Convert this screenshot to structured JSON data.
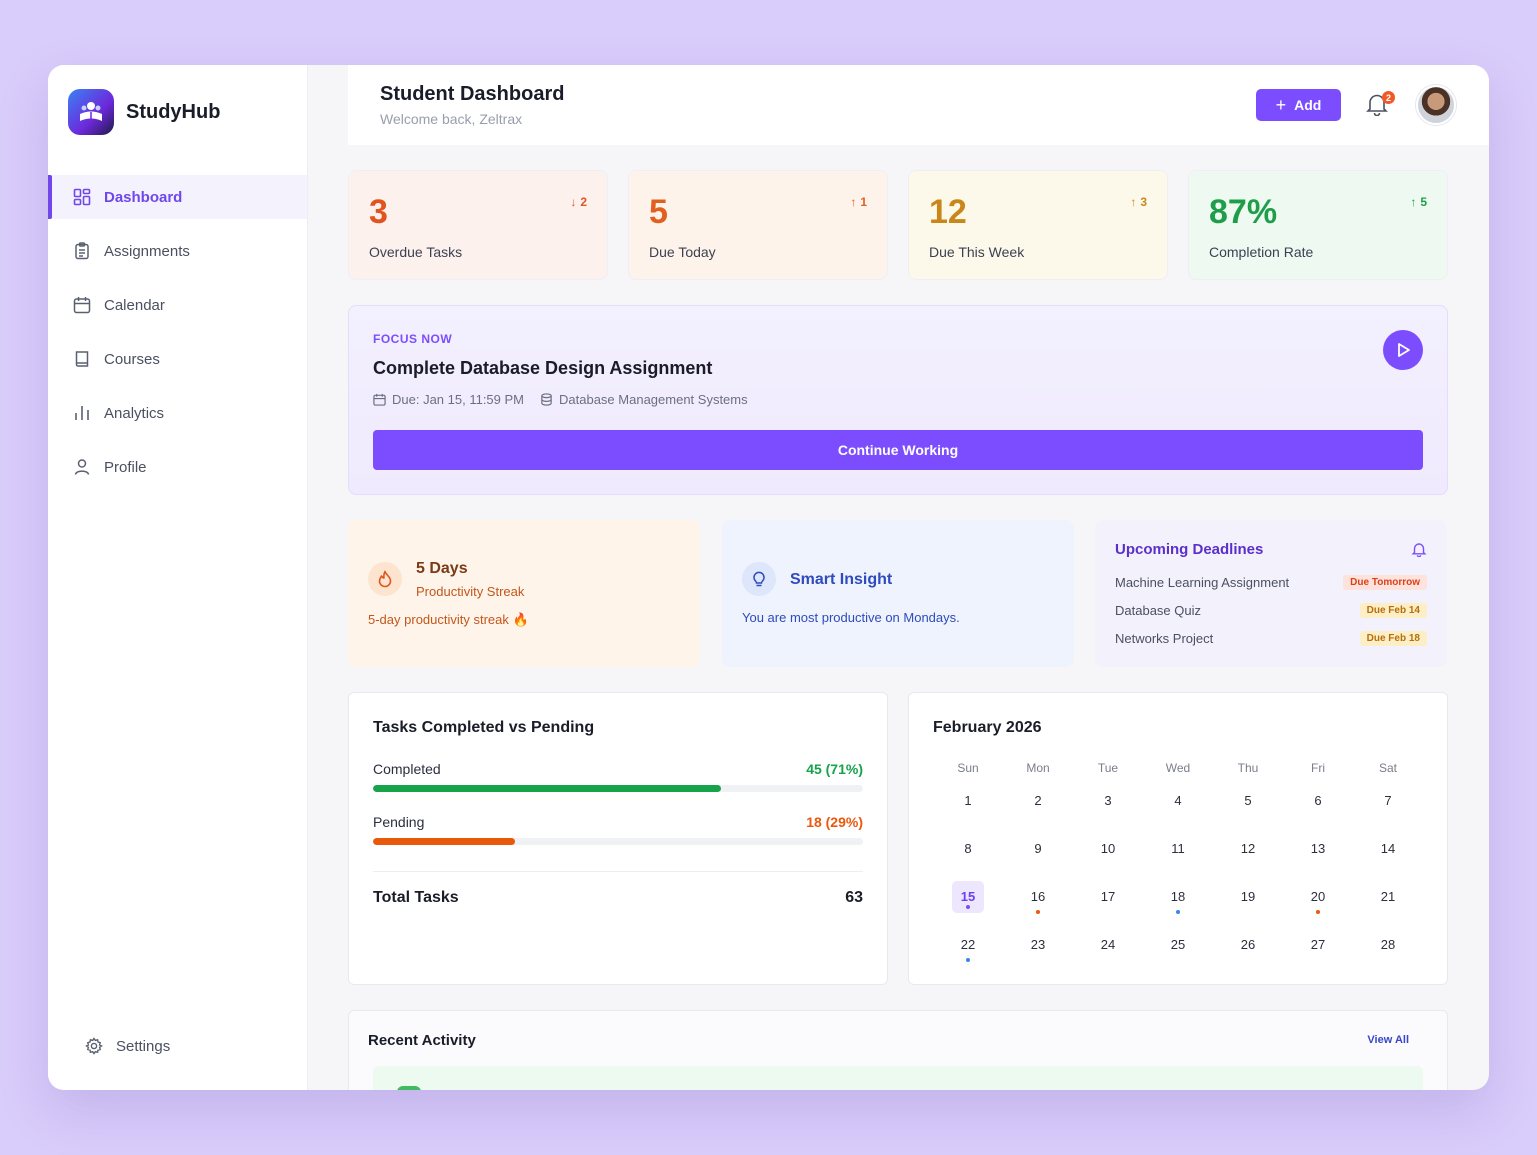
{
  "app": {
    "name": "StudyHub"
  },
  "sidebar": {
    "items": [
      {
        "label": "Dashboard",
        "icon": "grid-icon",
        "active": true
      },
      {
        "label": "Assignments",
        "icon": "clipboard-icon"
      },
      {
        "label": "Calendar",
        "icon": "calendar-icon"
      },
      {
        "label": "Courses",
        "icon": "book-icon"
      },
      {
        "label": "Analytics",
        "icon": "bar-chart-icon"
      },
      {
        "label": "Profile",
        "icon": "user-icon"
      }
    ],
    "settings_label": "Settings"
  },
  "header": {
    "title": "Student Dashboard",
    "subtitle": "Welcome back, Zeltrax",
    "add_label": "Add",
    "notification_count": "2"
  },
  "stats": [
    {
      "value": "3",
      "label": "Overdue Tasks",
      "trend": "2",
      "direction": "down",
      "color": "#e0551f",
      "bg": "#fdf1ee"
    },
    {
      "value": "5",
      "label": "Due Today",
      "trend": "1",
      "direction": "up",
      "color": "#e0601f",
      "bg": "#fdf3ea"
    },
    {
      "value": "12",
      "label": "Due This Week",
      "trend": "3",
      "direction": "up",
      "color": "#c98619",
      "bg": "#fdf9ea"
    },
    {
      "value": "87%",
      "label": "Completion Rate",
      "trend": "5",
      "direction": "up",
      "color": "#1f9e4a",
      "bg": "#eefaf1"
    }
  ],
  "focus": {
    "eyebrow": "FOCUS NOW",
    "title": "Complete Database Design Assignment",
    "due": "Due: Jan 15, 11:59 PM",
    "course": "Database Management Systems",
    "button_label": "Continue Working"
  },
  "streak": {
    "title": "5 Days",
    "subtitle": "Productivity Streak",
    "note": "5-day productivity streak 🔥"
  },
  "insight": {
    "title": "Smart Insight",
    "text": "You are most productive on Mondays."
  },
  "deadlines": {
    "title": "Upcoming Deadlines",
    "items": [
      {
        "name": "Machine Learning Assignment",
        "tag": "Due Tomorrow",
        "tag_color": "#d9421a",
        "tag_bg": "#fde3dc"
      },
      {
        "name": "Database Quiz",
        "tag": "Due Feb 14",
        "tag_color": "#b86e0a",
        "tag_bg": "#fcefc7"
      },
      {
        "name": "Networks Project",
        "tag": "Due Feb 18",
        "tag_color": "#b86e0a",
        "tag_bg": "#fcefc7"
      }
    ]
  },
  "tasks": {
    "title": "Tasks Completed vs Pending",
    "rows": [
      {
        "label": "Completed",
        "value": "45 (71%)",
        "fraction": 0.71,
        "color": "#16a34a"
      },
      {
        "label": "Pending",
        "value": "18 (29%)",
        "fraction": 0.29,
        "color": "#ea580c"
      }
    ],
    "total_label": "Total Tasks",
    "total_value": "63"
  },
  "calendar": {
    "title": "February 2026",
    "weekdays": [
      "Sun",
      "Mon",
      "Tue",
      "Wed",
      "Thu",
      "Fri",
      "Sat"
    ],
    "days": [
      {
        "n": "1"
      },
      {
        "n": "2"
      },
      {
        "n": "3"
      },
      {
        "n": "4"
      },
      {
        "n": "5"
      },
      {
        "n": "6"
      },
      {
        "n": "7"
      },
      {
        "n": "8"
      },
      {
        "n": "9"
      },
      {
        "n": "10"
      },
      {
        "n": "11"
      },
      {
        "n": "12"
      },
      {
        "n": "13"
      },
      {
        "n": "14"
      },
      {
        "n": "15",
        "today": true,
        "dot": "#7c4dff"
      },
      {
        "n": "16",
        "dot": "#ea580c"
      },
      {
        "n": "17"
      },
      {
        "n": "18",
        "dot": "#3b82f6"
      },
      {
        "n": "19"
      },
      {
        "n": "20",
        "dot": "#ea580c"
      },
      {
        "n": "21"
      },
      {
        "n": "22",
        "dot": "#3b82f6"
      },
      {
        "n": "23"
      },
      {
        "n": "24"
      },
      {
        "n": "25"
      },
      {
        "n": "26"
      },
      {
        "n": "27"
      },
      {
        "n": "28"
      }
    ]
  },
  "recent": {
    "title": "Recent Activity",
    "view_all": "View All"
  }
}
